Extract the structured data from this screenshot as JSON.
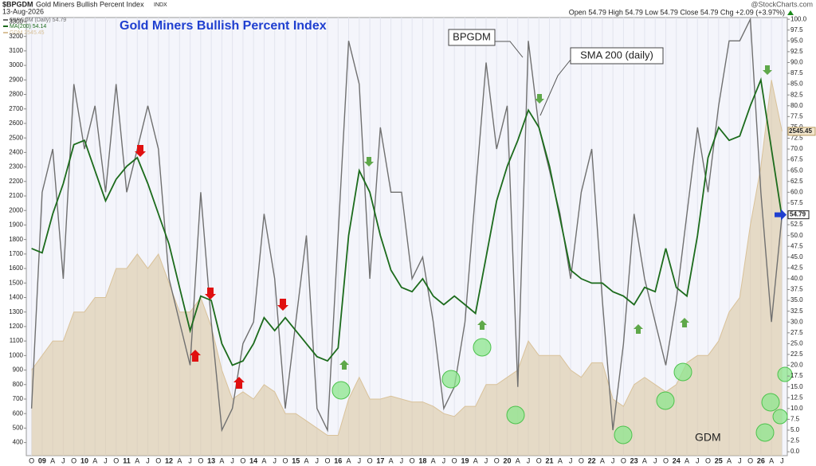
{
  "header": {
    "symbol": "$BPGDM",
    "name": "Gold Miners Bullish Percent Index",
    "exchange": "INDX",
    "date": "13-Aug-2026",
    "source": "@StockCharts.com",
    "quote": "Open 54.79 High 54.79 Low 54.79 Close 54.79 Chg +2.09 (+3.97%)"
  },
  "chart_data": {
    "type": "line",
    "title": "Gold Miners Bullish Percent Index",
    "annotations": [
      "BPGDM",
      "SMA 200 (daily)",
      "GDM"
    ],
    "last_labels": [
      "2545.45",
      "54.79"
    ],
    "categories": [
      "O",
      "09",
      "A",
      "J",
      "O",
      "10",
      "A",
      "J",
      "O",
      "11",
      "A",
      "J",
      "O",
      "12",
      "A",
      "J",
      "O",
      "13",
      "A",
      "J",
      "O",
      "14",
      "A",
      "J",
      "O",
      "15",
      "A",
      "J",
      "O",
      "16",
      "A",
      "J",
      "O",
      "17",
      "A",
      "J",
      "O",
      "18",
      "A",
      "J",
      "O",
      "19",
      "A",
      "J",
      "O",
      "20",
      "A",
      "J",
      "O",
      "21",
      "A",
      "J",
      "O",
      "22",
      "A",
      "J",
      "O",
      "23",
      "A",
      "J",
      "O",
      "24",
      "A",
      "J",
      "O",
      "25",
      "A",
      "J",
      "O",
      "26",
      "A",
      "J"
    ],
    "series": [
      {
        "name": "GDM 2545.45",
        "color": "#d9c29a",
        "kind": "area",
        "axis": "y",
        "values": [
          900,
          1000,
          1100,
          1100,
          1300,
          1300,
          1400,
          1400,
          1600,
          1600,
          1700,
          1600,
          1700,
          1500,
          1300,
          1300,
          1400,
          1200,
          900,
          700,
          750,
          700,
          800,
          750,
          600,
          600,
          550,
          500,
          450,
          450,
          700,
          850,
          700,
          700,
          720,
          700,
          680,
          680,
          650,
          600,
          580,
          650,
          650,
          800,
          800,
          850,
          900,
          1100,
          1000,
          1000,
          1000,
          900,
          850,
          950,
          950,
          700,
          650,
          800,
          850,
          800,
          750,
          800,
          950,
          1000,
          1000,
          1100,
          1300,
          1400,
          1900,
          2300,
          2900,
          2545.45
        ]
      },
      {
        "name": "$BPGDM (Daily) 54.79",
        "color": "#707070",
        "kind": "line",
        "axis": "y2",
        "values": [
          10,
          60,
          70,
          40,
          85,
          70,
          80,
          60,
          85,
          60,
          70,
          80,
          70,
          40,
          30,
          20,
          60,
          30,
          5,
          10,
          25,
          30,
          55,
          40,
          10,
          30,
          50,
          10,
          5,
          50,
          95,
          85,
          40,
          75,
          60,
          60,
          40,
          45,
          30,
          10,
          15,
          30,
          60,
          90,
          70,
          80,
          15,
          95,
          75,
          65,
          55,
          40,
          60,
          70,
          35,
          5,
          25,
          55,
          40,
          30,
          20,
          35,
          55,
          75,
          60,
          80,
          95,
          95,
          100,
          60,
          30,
          54.79
        ]
      },
      {
        "name": "MA(200) 54.14",
        "color": "#1c6b1c",
        "kind": "line",
        "axis": "y2",
        "values": [
          47,
          46,
          55,
          62,
          71,
          72,
          65,
          58,
          63,
          66,
          68,
          62,
          55,
          48,
          38,
          28,
          36,
          35,
          25,
          20,
          21,
          25,
          31,
          28,
          31,
          28,
          25,
          22,
          21,
          24,
          50,
          65,
          60,
          50,
          42,
          38,
          37,
          40,
          36,
          34,
          36,
          34,
          32,
          45,
          58,
          66,
          72,
          79,
          75,
          66,
          54,
          42,
          40,
          39,
          39,
          37,
          36,
          34,
          38,
          37,
          47,
          38,
          36,
          50,
          68,
          75,
          72,
          73,
          80,
          86,
          70,
          54.14
        ]
      }
    ],
    "ylim": [
      310,
      3330
    ],
    "yticks": [
      400,
      500,
      600,
      700,
      800,
      900,
      1000,
      1100,
      1200,
      1300,
      1400,
      1500,
      1600,
      1700,
      1800,
      1900,
      2000,
      2100,
      2200,
      2300,
      2400,
      2500,
      2600,
      2700,
      2800,
      2900,
      3000,
      3100,
      3200,
      3300
    ],
    "y2lim": [
      -0.9,
      100.4
    ],
    "y2ticks": [
      {
        "value": 0,
        "label": "0.0"
      },
      {
        "value": 2.5,
        "label": "2.5"
      },
      {
        "value": 5,
        "label": "5.0"
      },
      {
        "value": 7.5,
        "label": "7.5"
      },
      {
        "value": 10,
        "label": "10.0"
      },
      {
        "value": 12.5,
        "label": "12.5"
      },
      {
        "value": 15,
        "label": "15.0"
      },
      {
        "value": 17.5,
        "label": "17.5"
      },
      {
        "value": 20,
        "label": "20.0"
      },
      {
        "value": 22.5,
        "label": "22.5"
      },
      {
        "value": 25,
        "label": "25.0"
      },
      {
        "value": 27.5,
        "label": "27.5"
      },
      {
        "value": 30,
        "label": "30.0"
      },
      {
        "value": 32.5,
        "label": "32.5"
      },
      {
        "value": 35,
        "label": "35.0"
      },
      {
        "value": 37.5,
        "label": "37.5"
      },
      {
        "value": 40,
        "label": "40.0"
      },
      {
        "value": 42.5,
        "label": "42.5"
      },
      {
        "value": 45,
        "label": "45.0"
      },
      {
        "value": 47.5,
        "label": "47.5"
      },
      {
        "value": 50,
        "label": "50.0"
      },
      {
        "value": 52.5,
        "label": "52.5"
      },
      {
        "value": 55,
        "label": "55.0"
      },
      {
        "value": 57.5,
        "label": "57.5"
      },
      {
        "value": 60,
        "label": "60.0"
      },
      {
        "value": 62.5,
        "label": "62.5"
      },
      {
        "value": 65,
        "label": "65.0"
      },
      {
        "value": 67.5,
        "label": "67.5"
      },
      {
        "value": 70,
        "label": "70.0"
      },
      {
        "value": 72.5,
        "label": "72.5"
      },
      {
        "value": 75,
        "label": "75.0"
      },
      {
        "value": 77.5,
        "label": "77.5"
      },
      {
        "value": 80,
        "label": "80.0"
      },
      {
        "value": 82.5,
        "label": "82.5"
      },
      {
        "value": 85,
        "label": "85.0"
      },
      {
        "value": 87.5,
        "label": "87.5"
      },
      {
        "value": 90,
        "label": "90.0"
      },
      {
        "value": 92.5,
        "label": "92.5"
      },
      {
        "value": 95,
        "label": "95.0"
      },
      {
        "value": 97.5,
        "label": "97.5"
      },
      {
        "value": 100,
        "label": "100.0"
      }
    ]
  }
}
